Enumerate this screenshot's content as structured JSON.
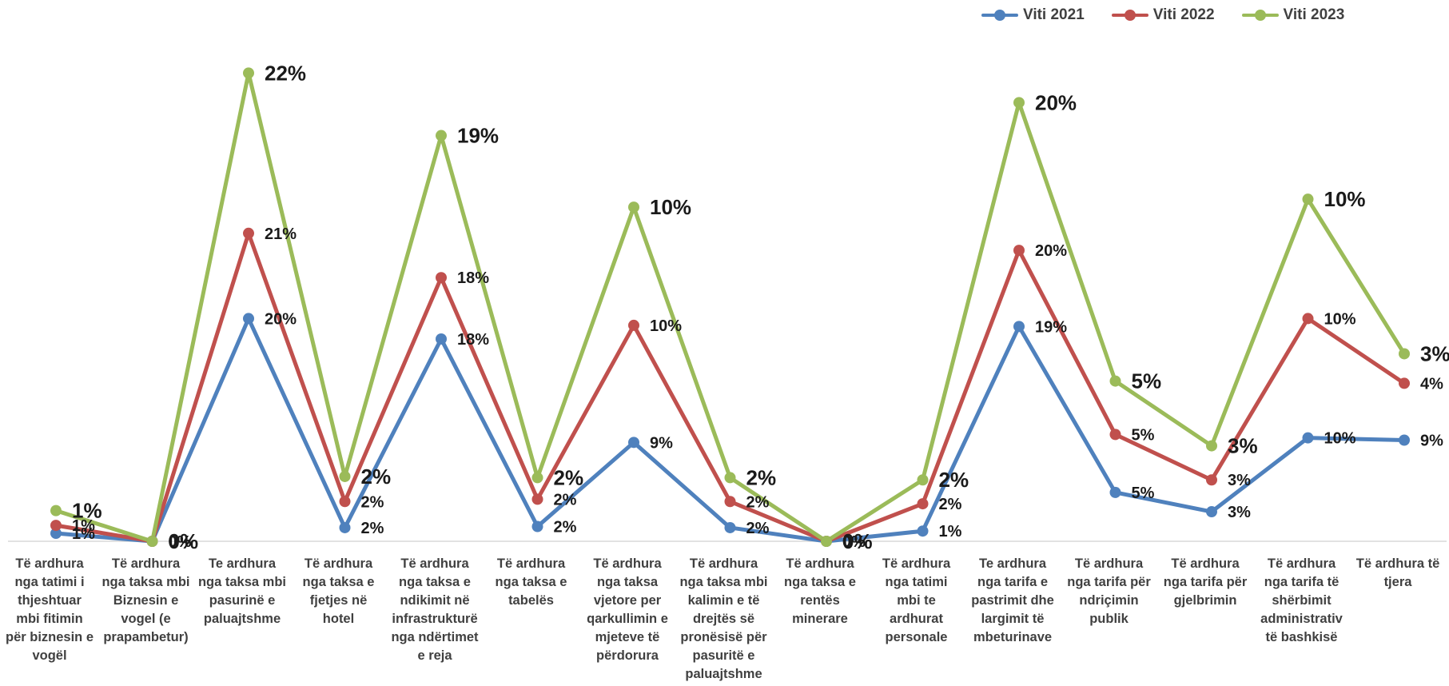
{
  "chart_data": {
    "type": "line",
    "categories": [
      [
        "Të ardhura",
        "nga tatimi i",
        "thjeshtuar",
        "mbi fitimin",
        "për biznesin e",
        "vogël"
      ],
      [
        "Të ardhura",
        "nga taksa mbi",
        "Biznesin e",
        "vogel (e",
        "prapambetur)"
      ],
      [
        "Te ardhura",
        "nga taksa mbi",
        "pasurinë  e",
        "paluajtshme"
      ],
      [
        "Të ardhura",
        "nga taksa e",
        "fjetjes në",
        "hotel"
      ],
      [
        "Të ardhura",
        "nga taksa e",
        "ndikimit në",
        "infrastrukturë",
        "nga ndërtimet",
        "e reja"
      ],
      [
        "Të ardhura",
        "nga taksa e",
        "tabelës"
      ],
      [
        "Të ardhura",
        "nga taksa",
        "vjetore per",
        "qarkullimin e",
        "mjeteve të",
        "përdorura"
      ],
      [
        "Të ardhura",
        "nga taksa mbi",
        "kalimin e të",
        "drejtës së",
        "pronësisë për",
        "pasuritë e",
        "paluajtshme"
      ],
      [
        "Të ardhura",
        "nga taksa e",
        "rentës",
        "minerare"
      ],
      [
        "Të ardhura",
        "nga tatimi",
        "mbi te",
        "ardhurat",
        "personale"
      ],
      [
        "Te ardhura",
        "nga tarifa e",
        "pastrimit dhe",
        "largimit të",
        "mbeturinave"
      ],
      [
        "Të ardhura",
        "nga tarifa për",
        "ndriçimin",
        "publik"
      ],
      [
        "Të ardhura",
        "nga tarifa për",
        "gjelbrimin"
      ],
      [
        "Të ardhura",
        "nga tarifa të",
        "shërbimit",
        "administrativ",
        "të bashkisë"
      ],
      [
        "Të ardhura të",
        "tjera"
      ]
    ],
    "series": [
      {
        "name": "Viti 2021",
        "color": "#4f81bd",
        "values": [
          0.7,
          0.0,
          19.6,
          1.2,
          17.8,
          1.3,
          8.7,
          1.2,
          0.0,
          0.9,
          18.9,
          4.3,
          2.6,
          9.1,
          8.9
        ],
        "labels": [
          "1%",
          "0%",
          "20%",
          "2%",
          "18%",
          "2%",
          "9%",
          "2%",
          "0%",
          "1%",
          "19%",
          "5%",
          "3%",
          "10%",
          "9%"
        ]
      },
      {
        "name": "Viti 2022",
        "color": "#c0504d",
        "values": [
          1.4,
          0.0,
          27.1,
          3.5,
          23.2,
          3.7,
          19.0,
          3.5,
          0.0,
          3.3,
          25.6,
          9.4,
          5.4,
          19.6,
          13.9
        ],
        "labels": [
          "1%",
          "0%",
          "21%",
          "2%",
          "18%",
          "2%",
          "10%",
          "2%",
          "0%",
          "2%",
          "20%",
          "5%",
          "3%",
          "10%",
          "4%"
        ]
      },
      {
        "name": "Viti 2023",
        "color": "#9bbb59",
        "values": [
          2.7,
          0.0,
          41.2,
          5.7,
          35.7,
          5.6,
          29.4,
          5.6,
          0.0,
          5.4,
          38.6,
          14.1,
          8.4,
          30.1,
          16.5
        ],
        "labels": [
          "1%",
          "0%",
          "22%",
          "2%",
          "19%",
          "2%",
          "10%",
          "2%",
          "0%",
          "2%",
          "20%",
          "5%",
          "3%",
          "10%",
          "3%"
        ]
      }
    ],
    "ylim": [
      0,
      42
    ],
    "legend_position": "top-right",
    "grid": false
  }
}
